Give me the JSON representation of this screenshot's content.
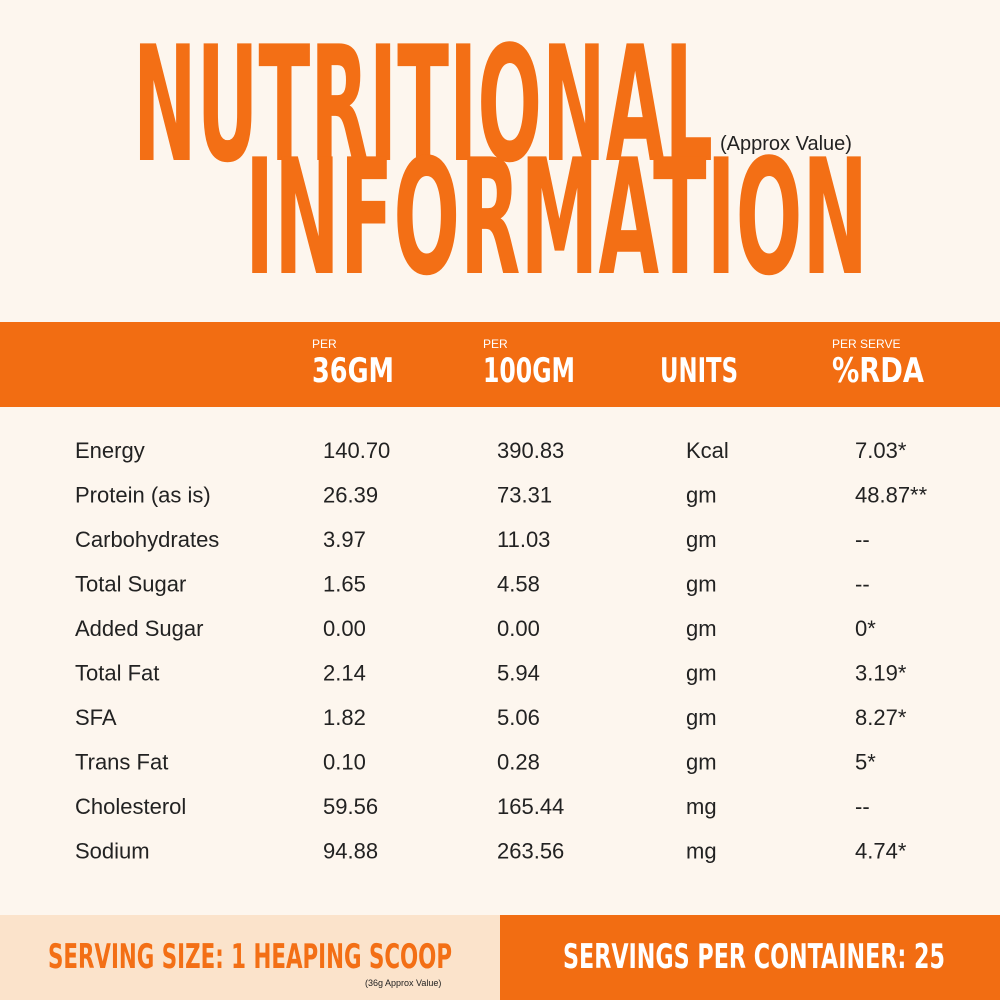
{
  "header": {
    "title_line1": "NUTRITIONAL",
    "note": "(Approx Value)",
    "title_line2": "INFORMATION"
  },
  "table": {
    "columns": [
      {
        "small": "PER",
        "label": "36GM"
      },
      {
        "small": "PER",
        "label": "100GM"
      },
      {
        "label": "UNITS"
      },
      {
        "small": "PER SERVE",
        "label": "%RDA"
      }
    ],
    "rows": [
      [
        "Energy",
        "140.70",
        "390.83",
        "Kcal",
        "7.03*"
      ],
      [
        "Protein (as is)",
        "26.39",
        "73.31",
        "gm",
        "48.87**"
      ],
      [
        "Carbohydrates",
        "3.97",
        "11.03",
        "gm",
        "--"
      ],
      [
        "Total Sugar",
        "1.65",
        "4.58",
        "gm",
        "--"
      ],
      [
        "Added Sugar",
        "0.00",
        "0.00",
        "gm",
        "0*"
      ],
      [
        "Total Fat",
        "2.14",
        "5.94",
        "gm",
        "3.19*"
      ],
      [
        "SFA",
        "1.82",
        "5.06",
        "gm",
        "8.27*"
      ],
      [
        "Trans Fat",
        "0.10",
        "0.28",
        "gm",
        "5*"
      ],
      [
        "Cholesterol",
        "59.56",
        "165.44",
        "mg",
        "--"
      ],
      [
        "Sodium",
        "94.88",
        "263.56",
        "mg",
        "4.74*"
      ]
    ]
  },
  "footer": {
    "serving_size": "SERVING SIZE: 1 HEAPING SCOOP",
    "serving_note": "(36g Approx Value)",
    "servings_per_container": "SERVINGS PER CONTAINER: 25"
  }
}
